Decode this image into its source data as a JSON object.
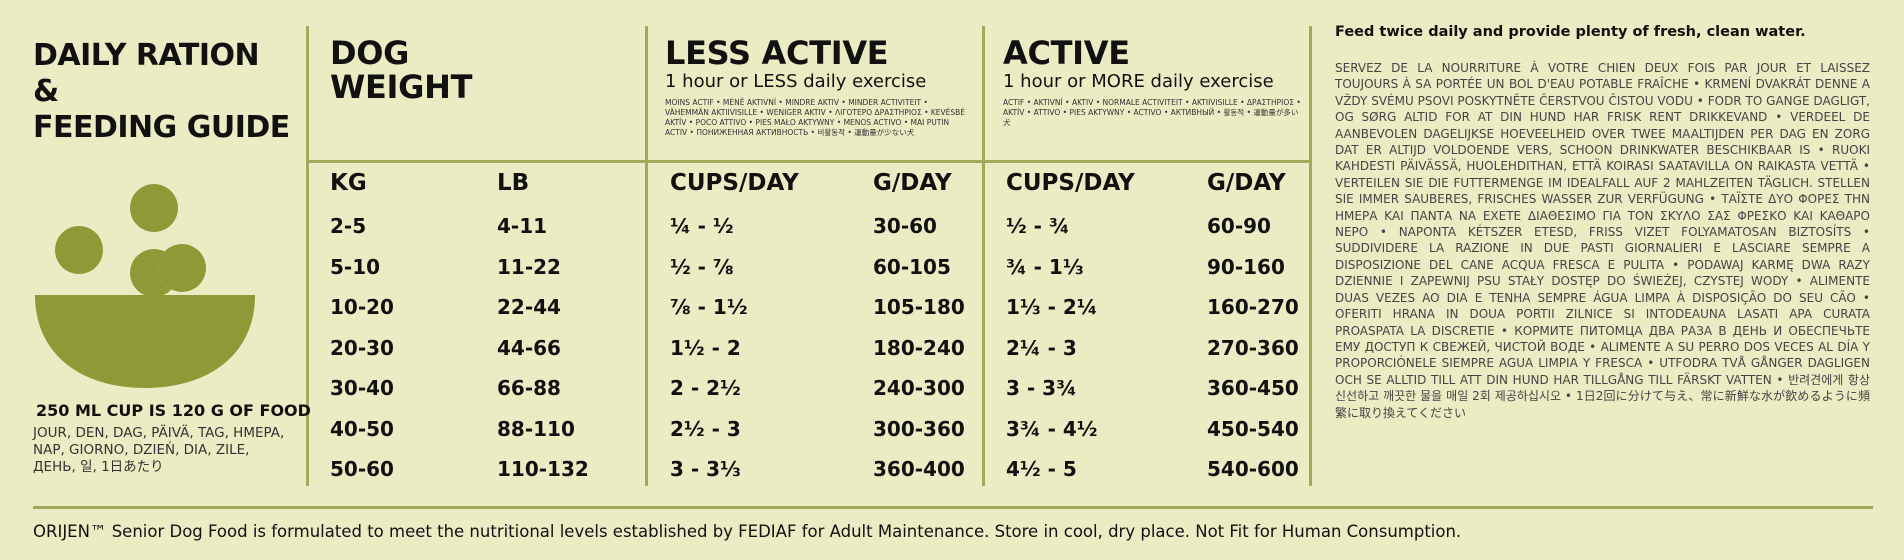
{
  "title": {
    "line1": "DAILY RATION &",
    "line2": "FEEDING GUIDE"
  },
  "cup_note": {
    "main": "250 ML CUP IS 120 G OF FOOD",
    "langs": "JOUR, DEN, DAG, PÄIVÄ, TAG, HMEPA, NAP, GIORNO, DZIEŃ, DIA, ZILE, ДЕНЬ, 일, 1日あたり"
  },
  "dog_weight": {
    "line1": "DOG",
    "line2": "WEIGHT",
    "kg": "KG",
    "lb": "LB"
  },
  "less_active": {
    "title": "LESS ACTIVE",
    "subtitle": "1 hour or LESS daily exercise",
    "translations": "MOINS ACTIF • MÉNĚ AKTIVNÍ • MINDRE AKTIV • MINDER ACTIVITEIT • VÄHEMMÄN AKTIIVISILLE • WENIGER AKTIV • ΛΙΓΟΤΕΡΟ ΔΡΑΣΤΗΡΙΟΣ • KEVÉSBÉ AKTÍV • POCO ATTIVO • PIES MAŁO AKTYWNY • MENOS ACTIVO • MAI PUTIN ACTIV • ПОНИЖЕННАЯ АКТИВНОСТЬ • 비활동적 • 運動量が少ない犬",
    "cups": "CUPS/DAY",
    "grams": "G/DAY"
  },
  "active": {
    "title": "ACTIVE",
    "subtitle": "1 hour or MORE daily exercise",
    "translations": "ACTIF • AKTIVNÍ • AKTIV • NORMALE ACTIVITEIT • AKTIIVISILLE • ΔΡΑΣΤΗΡΙΟΣ • AKTÍV • ATTIVO • PIES AKTYWNY • ACTIVO • АКТИВНЫЙ • 활동적 • 運動量が多い犬",
    "cups": "CUPS/DAY",
    "grams": "G/DAY"
  },
  "rows": [
    {
      "kg": "2-5",
      "lb": "4-11",
      "less_cups": "¼ - ½",
      "less_g": "30-60",
      "act_cups": "½ -  ¾",
      "act_g": "60-90"
    },
    {
      "kg": "5-10",
      "lb": "11-22",
      "less_cups": "½ - ⅞",
      "less_g": "60-105",
      "act_cups": "¾ - 1⅓",
      "act_g": "90-160"
    },
    {
      "kg": "10-20",
      "lb": "22-44",
      "less_cups": "⅞ - 1½",
      "less_g": "105-180",
      "act_cups": "1⅓ - 2¼",
      "act_g": "160-270"
    },
    {
      "kg": "20-30",
      "lb": "44-66",
      "less_cups": "1½ - 2",
      "less_g": "180-240",
      "act_cups": "2¼ - 3",
      "act_g": "270-360"
    },
    {
      "kg": "30-40",
      "lb": "66-88",
      "less_cups": "2 - 2½",
      "less_g": "240-300",
      "act_cups": "3 - 3¾",
      "act_g": "360-450"
    },
    {
      "kg": "40-50",
      "lb": "88-110",
      "less_cups": "2½ - 3",
      "less_g": "300-360",
      "act_cups": "3¾ - 4½",
      "act_g": "450-540"
    },
    {
      "kg": "50-60",
      "lb": "110-132",
      "less_cups": "3 - 3⅓",
      "less_g": "360-400",
      "act_cups": "4½ - 5",
      "act_g": "540-600"
    }
  ],
  "feeding": {
    "heading": "Feed twice daily and provide plenty of fresh, clean water.",
    "translations": "SERVEZ DE LA NOURRITURE À VOTRE CHIEN DEUX FOIS PAR JOUR ET LAISSEZ TOUJOURS À SA PORTÉE UN BOL D'EAU POTABLE FRAÎCHE • KRMENÍ DVAKRÁT DENNE A VŽDY SVÉMU PSOVI POSKYTNĚTE ČERSTVOU ČISTOU VODU • FODR TO GANGE DAGLIGT, OG SØRG ALTID FOR AT DIN HUND HAR FRISK RENT DRIKKEVAND • VERDEEL DE AANBEVOLEN DAGELIJKSE HOEVEELHEID OVER TWEE MAALTIJDEN PER DAG EN ZORG DAT ER ALTIJD VOLDOENDE VERS, SCHOON DRINKWATER BESCHIKBAAR IS • RUOKI KAHDESTI PÄIVÄSSÄ, HUOLEHDITHAN, ETTÄ KOIRASI SAATAVILLA ON RAIKASTA VETTÄ • VERTEILEN SIE DIE FUTTERMENGE IM IDEALFALL AUF 2 MAHLZEITEN TÄGLICH. STELLEN SIE IMMER SAUBERES, FRISCHES WASSER ZUR VERFÜGUNG • ΤΑΪΣΤΕ ΔΥΟ ΦΟΡΕΣ ΤΗΝ ΗΜΕΡΑ ΚΑΙ ΠΑΝΤΑ ΝΑ ΕΧΕΤΕ ΔΙΑΘΕΣΙΜΟ ΓΙΑ ΤΟΝ ΣΚΥΛΟ ΣΑΣ ΦΡΕΣΚΟ ΚΑΙ ΚΑΘΑΡΟ ΝΕΡΟ • NAPONTA KÉTSZER ETESD, FRISS VIZET FOLYAMATOSAN BIZTOSÍTS • SUDDIVIDERE LA RAZIONE IN DUE PASTI GIORNALIERI E LASCIARE SEMPRE A DISPOSIZIONE DEL CANE ACQUA FRESCA E PULITA • PODAWAJ KARMĘ DWA RAZY DZIENNIE I ZAPEWNIJ PSU STAŁY DOSTĘP DO ŚWIEŻEJ, CZYSTEJ WODY • ALIMENTE DUAS VEZES AO DIA E TENHA SEMPRE ÁGUA LIMPA À DISPOSIÇÃO DO SEU CÃO • OFERITI HRANA IN DOUA PORTII ZILNICE SI INTODEAUNA LASATI APA CURATA PROASPATA LA DISCRETIE • КОРМИТЕ ПИТОМЦА ДВА РАЗА В ДЕНЬ И ОБЕСПЕЧЬТЕ ЕМУ ДОСТУП К СВЕЖЕЙ, ЧИСТОЙ ВОДЕ • ALIMENTE A SU PERRO DOS VECES AL DÍA Y PROPORCIÓNELE SIEMPRE AGUA LIMPIA Y FRESCA • UTFODRA TVÅ GÅNGER DAGLIGEN OCH SE ALLTID TILL ATT DIN HUND HAR TILLGÅNG TILL FÄRSKT VATTEN • 반려견에게 항상 신선하고 깨끗한 물을 매일 2회 제공하십시오 • 1日2回に分けて与え、常に新鮮な水が飲めるように頻繁に取り換えてください"
  },
  "footer": "ORIJEN™ Senior Dog Food is formulated to meet the nutritional levels established by FEDIAF for Adult Maintenance. Store in cool, dry place. Not Fit for Human Consumption.",
  "colors": {
    "background": "#ebebc4",
    "accent": "#8f9935",
    "rule": "#a3a85a"
  },
  "icons": {
    "bowl": "food-bowl-icon"
  }
}
